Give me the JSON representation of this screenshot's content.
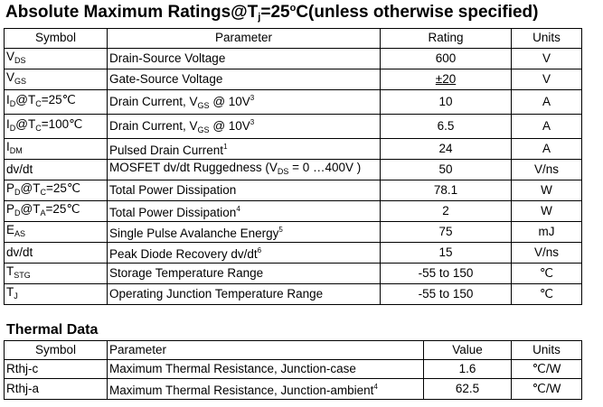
{
  "title": {
    "main": "Absolute Maximum Ratings@T",
    "sub": "j",
    "rest": "=25",
    "deg": "o",
    "tail": "C(unless otherwise specified)"
  },
  "abs_table": {
    "headers": {
      "symbol": "Symbol",
      "parameter": "Parameter",
      "rating": "Rating",
      "units": "Units"
    },
    "rows": [
      {
        "sym": "V",
        "sym_sub": "DS",
        "sym_rest": "",
        "param": "Drain-Source Voltage",
        "rating": "600",
        "unit": "V"
      },
      {
        "sym": "V",
        "sym_sub": "GS",
        "sym_rest": "",
        "param": "Gate-Source Voltage",
        "rating": "±20",
        "unit": "V"
      },
      {
        "sym": "I",
        "sym_sub": "D",
        "sym_rest": "@T",
        "sym_sub2": "C",
        "sym_tail": "=25℃",
        "param": "Drain Current, V",
        "param_sub": "GS",
        "param_tail": " @ 10V",
        "param_sup": "3",
        "rating": "10",
        "unit": "A"
      },
      {
        "sym": "I",
        "sym_sub": "D",
        "sym_rest": "@T",
        "sym_sub2": "C",
        "sym_tail": "=100℃",
        "param": "Drain Current, V",
        "param_sub": "GS",
        "param_tail": " @ 10V",
        "param_sup": "3",
        "rating": "6.5",
        "unit": "A"
      },
      {
        "sym": "I",
        "sym_sub": "DM",
        "sym_rest": "",
        "param": "Pulsed Drain Current",
        "param_sup": "1",
        "rating": "24",
        "unit": "A"
      },
      {
        "sym": "dv/dt",
        "param": "MOSFET dv/dt Ruggedness (V",
        "param_sub": "DS",
        "param_tail": " = 0 …400V )",
        "rating": "50",
        "unit": "V/ns"
      },
      {
        "sym": "P",
        "sym_sub": "D",
        "sym_rest": "@T",
        "sym_sub2": "C",
        "sym_tail": "=25℃",
        "param": "Total Power Dissipation",
        "rating": "78.1",
        "unit": "W"
      },
      {
        "sym": "P",
        "sym_sub": "D",
        "sym_rest": "@T",
        "sym_sub2": "A",
        "sym_tail": "=25℃",
        "param": "Total Power Dissipation",
        "param_sup": "4",
        "rating": "2",
        "unit": "W"
      },
      {
        "sym": "E",
        "sym_sub": "AS",
        "sym_rest": "",
        "param": "Single Pulse Avalanche Energy",
        "param_sup": "5",
        "rating": "75",
        "unit": "mJ"
      },
      {
        "sym": "dv/dt",
        "param": "Peak Diode Recovery dv/dt",
        "param_sup": "6",
        "rating": "15",
        "unit": "V/ns"
      },
      {
        "sym": "T",
        "sym_sub": "STG",
        "sym_rest": "",
        "param": "Storage Temperature Range",
        "rating": "-55 to 150",
        "unit": "℃"
      },
      {
        "sym": "T",
        "sym_sub": "J",
        "sym_rest": "",
        "param": "Operating Junction Temperature Range",
        "rating": "-55 to 150",
        "unit": "℃"
      }
    ]
  },
  "thermal_title": "Thermal Data",
  "thermal_table": {
    "headers": {
      "symbol": "Symbol",
      "parameter": "Parameter",
      "value": "Value",
      "units": "Units"
    },
    "rows": [
      {
        "sym": "Rthj-c",
        "param": "Maximum Thermal Resistance, Junction-case",
        "value": "1.6",
        "unit": "℃/W"
      },
      {
        "sym": "Rthj-a",
        "param": "Maximum Thermal Resistance, Junction-ambient",
        "param_sup": "4",
        "value": "62.5",
        "unit": "℃/W"
      }
    ]
  }
}
